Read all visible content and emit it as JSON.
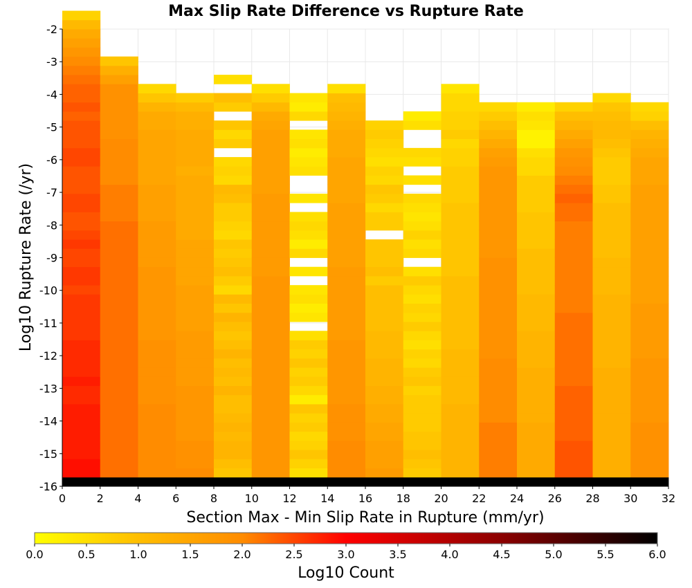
{
  "chart_data": {
    "type": "heatmap",
    "title": "Max Slip Rate Difference vs Rupture Rate",
    "xlabel": "Section Max - Min Slip Rate in Rupture (mm/yr)",
    "ylabel": "Log10 Rupture Rate (/yr)",
    "xlim": [
      0,
      32
    ],
    "ylim": [
      -16,
      -2
    ],
    "x_ticks": [
      "0",
      "2",
      "4",
      "6",
      "8",
      "10",
      "12",
      "14",
      "16",
      "18",
      "20",
      "22",
      "24",
      "26",
      "28",
      "30",
      "32"
    ],
    "y_ticks": [
      "-2",
      "-3",
      "-4",
      "-5",
      "-6",
      "-7",
      "-8",
      "-9",
      "-10",
      "-11",
      "-12",
      "-13",
      "-14",
      "-15",
      "-16"
    ],
    "x_bin_width": 2,
    "y_bin_height": 0.28,
    "grid": true,
    "columns": [
      {
        "x0": 0,
        "y_start": -16,
        "values": [
          6.0,
          2.9,
          2.9,
          2.8,
          2.8,
          2.8,
          2.8,
          2.8,
          2.8,
          2.7,
          2.7,
          2.8,
          2.7,
          2.7,
          2.7,
          2.7,
          2.6,
          2.6,
          2.6,
          2.6,
          2.6,
          2.5,
          2.6,
          2.6,
          2.5,
          2.5,
          2.6,
          2.5,
          2.4,
          2.4,
          2.5,
          2.5,
          2.4,
          2.4,
          2.4,
          2.5,
          2.5,
          2.4,
          2.4,
          2.4,
          2.3,
          2.4,
          2.3,
          2.3,
          2.2,
          2.1,
          2.0,
          1.8,
          1.6,
          1.4,
          1.1,
          0.7
        ]
      },
      {
        "x0": 2,
        "y_start": -16,
        "values": [
          6.0,
          2.2,
          2.2,
          2.2,
          2.2,
          2.2,
          2.2,
          2.2,
          2.2,
          2.2,
          2.2,
          2.2,
          2.2,
          2.2,
          2.2,
          2.2,
          2.2,
          2.2,
          2.2,
          2.2,
          2.2,
          2.2,
          2.2,
          2.2,
          2.2,
          2.2,
          2.2,
          2.2,
          2.2,
          2.1,
          2.1,
          2.1,
          2.1,
          2.0,
          2.0,
          2.0,
          2.0,
          2.0,
          1.9,
          1.9,
          1.9,
          1.9,
          1.9,
          1.9,
          1.6,
          1.3,
          0.9
        ]
      },
      {
        "x0": 4,
        "y_start": -16,
        "values": [
          6.0,
          2.0,
          2.0,
          2.0,
          2.0,
          2.0,
          2.0,
          2.0,
          2.0,
          1.9,
          1.9,
          1.9,
          1.9,
          1.9,
          1.9,
          1.9,
          1.8,
          1.8,
          1.8,
          1.8,
          1.8,
          1.8,
          1.8,
          1.8,
          1.7,
          1.7,
          1.7,
          1.7,
          1.7,
          1.6,
          1.6,
          1.6,
          1.6,
          1.5,
          1.5,
          1.5,
          1.5,
          1.5,
          1.5,
          1.4,
          1.4,
          1.2,
          0.9,
          0.6
        ]
      },
      {
        "x0": 6,
        "y_start": -16,
        "values": [
          6.0,
          2.0,
          1.9,
          1.9,
          1.9,
          1.8,
          1.8,
          1.8,
          1.8,
          1.8,
          1.8,
          1.7,
          1.7,
          1.7,
          1.7,
          1.7,
          1.7,
          1.6,
          1.6,
          1.6,
          1.6,
          1.6,
          1.5,
          1.5,
          1.5,
          1.5,
          1.5,
          1.4,
          1.4,
          1.4,
          1.4,
          1.4,
          1.4,
          1.4,
          1.3,
          1.4,
          1.4,
          1.4,
          1.4,
          1.3,
          1.3,
          1.1,
          0.8
        ]
      },
      {
        "x0": 8,
        "y_start": -16,
        "values": [
          6.0,
          0.9,
          1.0,
          1.2,
          1.2,
          1.1,
          1.2,
          1.1,
          1.0,
          1.0,
          1.2,
          1.0,
          1.1,
          1.0,
          1.2,
          1.0,
          0.9,
          1.0,
          1.2,
          0.9,
          1.1,
          0.6,
          0.8,
          1.0,
          0.9,
          0.8,
          0.9,
          0.6,
          0.7,
          0.8,
          0.8,
          1.0,
          1.1,
          0.6,
          0.7,
          0.6,
          -1,
          0.8,
          0.6,
          0.9,
          -1,
          0.8,
          1.0,
          -1,
          0.5
        ]
      },
      {
        "x0": 10,
        "y_start": -16,
        "values": [
          6.0,
          1.8,
          1.8,
          1.8,
          1.8,
          1.8,
          1.8,
          1.8,
          1.8,
          1.8,
          1.8,
          1.8,
          1.8,
          1.8,
          1.8,
          1.8,
          1.8,
          1.8,
          1.8,
          1.8,
          1.8,
          1.8,
          1.8,
          1.7,
          1.7,
          1.7,
          1.7,
          1.7,
          1.7,
          1.7,
          1.7,
          1.7,
          1.6,
          1.6,
          1.6,
          1.6,
          1.6,
          1.6,
          1.6,
          1.5,
          1.4,
          1.1,
          0.8,
          0.5
        ]
      },
      {
        "x0": 12,
        "y_start": -16,
        "values": [
          6.0,
          0.5,
          0.7,
          0.9,
          0.7,
          0.6,
          0.8,
          0.7,
          0.9,
          0.3,
          0.6,
          0.8,
          0.7,
          0.9,
          0.7,
          0.8,
          0.5,
          -1,
          0.4,
          0.3,
          0.5,
          0.4,
          -1,
          0.4,
          -1,
          0.6,
          0.3,
          0.5,
          0.6,
          0.5,
          -1,
          0.4,
          -1,
          -1,
          0.5,
          0.4,
          0.3,
          0.5,
          0.4,
          -1,
          0.6,
          0.3,
          0.4
        ]
      },
      {
        "x0": 14,
        "y_start": -16,
        "values": [
          6.0,
          2.0,
          2.0,
          2.0,
          2.0,
          1.9,
          1.9,
          1.9,
          1.9,
          1.8,
          1.8,
          1.8,
          1.8,
          1.8,
          1.8,
          1.8,
          1.7,
          1.7,
          1.7,
          1.7,
          1.7,
          1.7,
          1.7,
          1.7,
          1.6,
          1.6,
          1.6,
          1.6,
          1.6,
          1.6,
          1.6,
          1.5,
          1.5,
          1.5,
          1.5,
          1.5,
          1.4,
          1.4,
          1.4,
          1.3,
          1.2,
          1.1,
          1.0,
          0.5
        ]
      },
      {
        "x0": 16,
        "y_start": -16,
        "values": [
          6.0,
          1.7,
          1.6,
          1.6,
          1.6,
          1.5,
          1.5,
          1.4,
          1.4,
          1.3,
          1.3,
          1.2,
          1.2,
          1.2,
          1.1,
          1.1,
          1.1,
          1.0,
          1.0,
          1.0,
          1.0,
          1.0,
          0.8,
          1.0,
          0.9,
          0.9,
          0.9,
          -1,
          0.8,
          0.8,
          0.6,
          0.8,
          0.9,
          0.6,
          0.7,
          0.5,
          0.6,
          0.7,
          0.8,
          0.7
        ]
      },
      {
        "x0": 18,
        "y_start": -16,
        "values": [
          6.0,
          0.8,
          0.9,
          1.0,
          0.9,
          0.9,
          0.8,
          0.8,
          0.8,
          0.8,
          0.7,
          0.9,
          0.8,
          0.6,
          0.7,
          0.5,
          0.6,
          0.8,
          0.6,
          0.7,
          0.5,
          0.6,
          0.8,
          0.5,
          -1,
          0.6,
          0.5,
          0.7,
          0.5,
          0.4,
          0.5,
          0.6,
          -1,
          0.5,
          -1,
          0.5,
          0.6,
          -1,
          -1,
          0.5,
          0.3
        ]
      },
      {
        "x0": 20,
        "y_start": -16,
        "values": [
          6.0,
          1.2,
          1.2,
          1.2,
          1.2,
          1.2,
          1.2,
          1.2,
          1.2,
          1.1,
          1.1,
          1.1,
          1.1,
          1.1,
          1.1,
          1.0,
          1.0,
          1.0,
          1.0,
          1.0,
          1.0,
          1.0,
          1.0,
          0.9,
          0.9,
          0.9,
          0.9,
          0.9,
          0.9,
          0.9,
          0.9,
          0.8,
          0.8,
          0.8,
          0.8,
          0.7,
          0.7,
          0.6,
          0.8,
          0.7,
          0.7,
          0.6,
          0.6,
          0.4
        ]
      },
      {
        "x0": 22,
        "y_start": -16,
        "values": [
          6.0,
          2.1,
          2.1,
          2.1,
          2.1,
          2.1,
          2.1,
          2.0,
          2.0,
          2.0,
          2.0,
          2.0,
          2.0,
          2.0,
          1.9,
          1.9,
          1.9,
          1.9,
          1.9,
          1.9,
          1.9,
          1.9,
          1.9,
          1.9,
          1.9,
          1.8,
          1.8,
          1.8,
          1.8,
          1.8,
          1.8,
          1.8,
          1.8,
          1.8,
          1.8,
          1.7,
          1.6,
          1.4,
          1.2,
          1.0,
          0.8,
          0.6
        ]
      },
      {
        "x0": 24,
        "y_start": -16,
        "values": [
          6.0,
          1.4,
          1.4,
          1.4,
          1.4,
          1.4,
          1.4,
          1.3,
          1.3,
          1.3,
          1.3,
          1.3,
          1.3,
          1.2,
          1.2,
          1.2,
          1.2,
          1.1,
          1.1,
          1.1,
          1.1,
          1.0,
          1.0,
          1.0,
          1.0,
          1.0,
          0.9,
          0.9,
          0.9,
          0.9,
          0.8,
          0.8,
          0.8,
          0.8,
          0.6,
          0.6,
          0.5,
          0.2,
          0.2,
          0.4,
          0.5,
          0.3
        ]
      },
      {
        "x0": 26,
        "y_start": -16,
        "values": [
          6.0,
          2.4,
          2.4,
          2.4,
          2.4,
          2.3,
          2.3,
          2.3,
          2.3,
          2.3,
          2.3,
          2.2,
          2.2,
          2.2,
          2.2,
          2.2,
          2.2,
          2.2,
          2.2,
          2.1,
          2.1,
          2.1,
          2.1,
          2.1,
          2.1,
          2.1,
          2.1,
          2.1,
          2.1,
          2.2,
          2.2,
          2.3,
          2.2,
          2.1,
          2.0,
          1.9,
          1.8,
          1.6,
          1.4,
          1.2,
          1.0,
          0.7
        ]
      },
      {
        "x0": 28,
        "y_start": -16,
        "values": [
          6.0,
          1.3,
          1.3,
          1.3,
          1.3,
          1.3,
          1.3,
          1.3,
          1.3,
          1.3,
          1.3,
          1.3,
          1.3,
          1.2,
          1.2,
          1.2,
          1.2,
          1.2,
          1.2,
          1.2,
          1.2,
          1.1,
          1.1,
          1.1,
          1.1,
          1.0,
          1.0,
          1.0,
          1.0,
          1.0,
          1.0,
          0.9,
          0.9,
          0.8,
          0.8,
          0.8,
          0.9,
          1.0,
          1.1,
          1.1,
          1.0,
          0.9,
          0.6
        ]
      },
      {
        "x0": 30,
        "y_start": -16,
        "values": [
          6.0,
          1.9,
          1.9,
          1.9,
          1.9,
          1.9,
          1.9,
          1.8,
          1.8,
          1.8,
          1.8,
          1.8,
          1.8,
          1.8,
          1.7,
          1.7,
          1.7,
          1.7,
          1.7,
          1.7,
          1.6,
          1.6,
          1.6,
          1.6,
          1.6,
          1.6,
          1.6,
          1.6,
          1.6,
          1.6,
          1.6,
          1.6,
          1.6,
          1.5,
          1.5,
          1.5,
          1.4,
          1.3,
          1.2,
          1.0,
          0.7,
          0.6
        ]
      }
    ],
    "colorbar": {
      "label": "Log10 Count",
      "min": 0.0,
      "max": 6.0,
      "ticks": [
        "0.0",
        "0.5",
        "1.0",
        "1.5",
        "2.0",
        "2.5",
        "3.0",
        "3.5",
        "4.0",
        "4.5",
        "5.0",
        "5.5",
        "6.0"
      ],
      "stops": [
        {
          "v": 0.0,
          "color": "#ffff00"
        },
        {
          "v": 1.0,
          "color": "#ffbe00"
        },
        {
          "v": 2.0,
          "color": "#ff8c00"
        },
        {
          "v": 3.0,
          "color": "#ff0000"
        },
        {
          "v": 4.5,
          "color": "#8b0000"
        },
        {
          "v": 6.0,
          "color": "#000000"
        }
      ]
    },
    "colors": {
      "background": "#ffffff",
      "grid": "#e8e8e8",
      "axis": "#000000"
    }
  }
}
